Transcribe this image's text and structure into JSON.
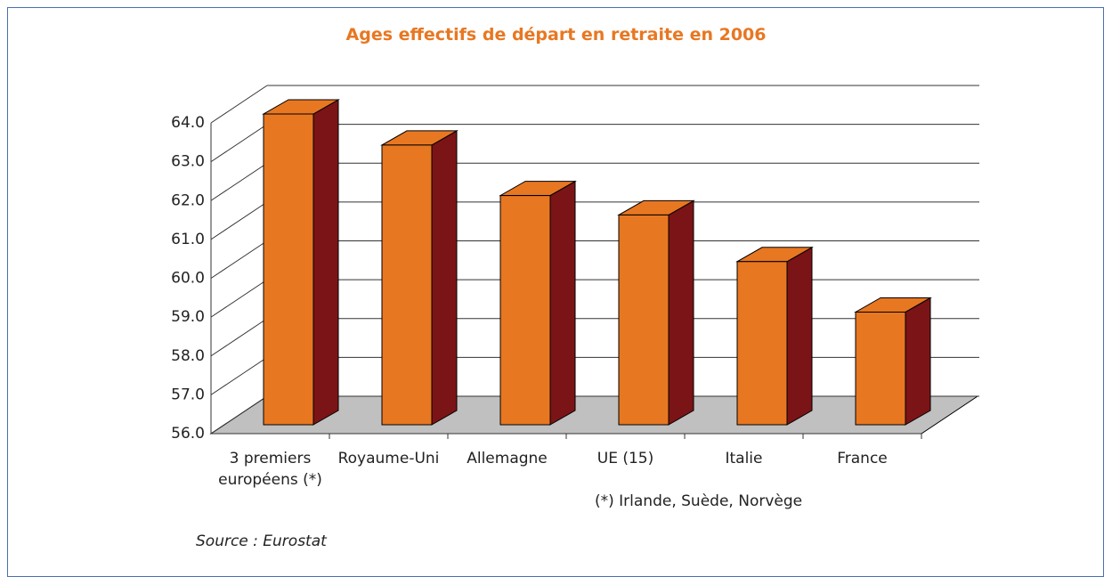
{
  "chart_data": {
    "type": "bar3d",
    "title": "Ages effectifs de départ en retraite en 2006",
    "categories": [
      "3 premiers européens (*)",
      "Royaume-Uni",
      "Allemagne",
      "UE (15)",
      "Italie",
      "France"
    ],
    "values": [
      64.0,
      63.2,
      61.9,
      61.4,
      60.2,
      58.9
    ],
    "color": "#e87722",
    "side_color": "#7b1416",
    "floor_color": "#c0c0c0",
    "ylim": [
      56,
      64
    ],
    "yticks": [
      {
        "value": 56,
        "label": "56.0"
      },
      {
        "value": 57,
        "label": "57.0"
      },
      {
        "value": 58,
        "label": "58.0"
      },
      {
        "value": 59,
        "label": "59.0"
      },
      {
        "value": 60,
        "label": "60.0"
      },
      {
        "value": 61,
        "label": "61.0"
      },
      {
        "value": 62,
        "label": "62.0"
      },
      {
        "value": 63,
        "label": "63.0"
      },
      {
        "value": 64,
        "label": "64.0"
      }
    ],
    "grid": true,
    "note": "(*) Irlande, Suède, Norvège",
    "source": "Source : Eurostat"
  }
}
